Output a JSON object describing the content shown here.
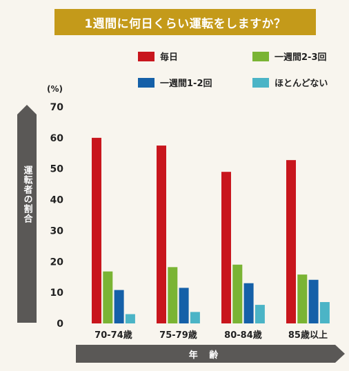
{
  "colors": {
    "title_bg": "#c49a1a",
    "arrow": "#5a5856",
    "series": [
      "#c8161d",
      "#7ab434",
      "#1560a8",
      "#4bb4c6"
    ]
  },
  "chart_data": {
    "type": "bar",
    "title": "1週間に何日くらい運転をしますか？",
    "xlabel": "年 齢",
    "ylabel": "運転者の割合",
    "y_unit": "(%)",
    "ylim": [
      0,
      70
    ],
    "yticks": [
      0,
      10,
      20,
      30,
      40,
      50,
      60,
      70
    ],
    "grid": false,
    "legend_position": "top",
    "categories": [
      "70-74歳",
      "75-79歳",
      "80-84歳",
      "85歳以上"
    ],
    "series": [
      {
        "name": "毎日",
        "values": [
          60.0,
          57.5,
          49.0,
          52.8
        ]
      },
      {
        "name": "一週間2-3回",
        "values": [
          16.8,
          18.2,
          19.0,
          15.8
        ]
      },
      {
        "name": "一週間1-2回",
        "values": [
          10.8,
          11.5,
          13.0,
          14.1
        ]
      },
      {
        "name": "ほとんどない",
        "values": [
          3.0,
          3.7,
          6.0,
          6.9
        ]
      }
    ]
  }
}
